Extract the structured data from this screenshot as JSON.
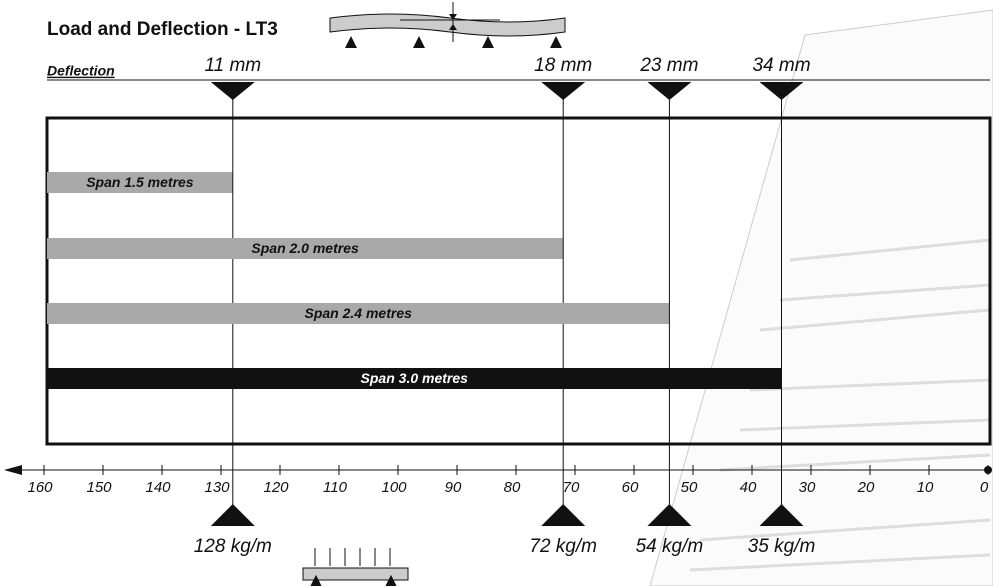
{
  "chart_data": {
    "type": "bar",
    "orientation": "horizontal",
    "title": "Load and Deflection - LT3",
    "deflection_axis_label": "Deflection",
    "categories": [
      "Span 1.5 metres",
      "Span 2.0 metres",
      "Span 2.4 metres",
      "Span 3.0 metres"
    ],
    "values": [
      128,
      72,
      54,
      35
    ],
    "value_labels": [
      "128 kg/m",
      "72 kg/m",
      "54 kg/m",
      "35 kg/m"
    ],
    "deflection_labels": [
      "11 mm",
      "18 mm",
      "23 mm",
      "34 mm"
    ],
    "colors": [
      "#a9a9a9",
      "#a9a9a9",
      "#a9a9a9",
      "#111111"
    ],
    "label_colors": [
      "#111111",
      "#111111",
      "#111111",
      "#ffffff"
    ],
    "xlim": [
      160,
      0
    ],
    "xticks": [
      160,
      150,
      140,
      130,
      120,
      110,
      100,
      90,
      80,
      70,
      60,
      50,
      40,
      30,
      20,
      10,
      0
    ]
  }
}
